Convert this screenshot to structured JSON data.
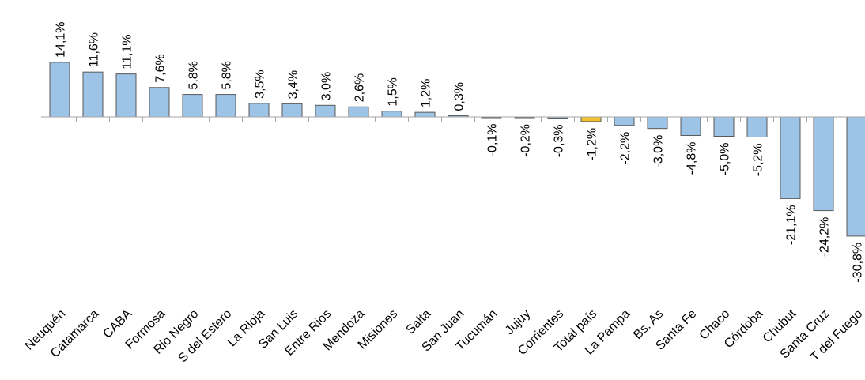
{
  "chart_data": {
    "type": "bar",
    "title": "",
    "xlabel": "",
    "ylabel": "",
    "ylim": [
      -33,
      16
    ],
    "grid": false,
    "legend": "none",
    "categories": [
      "Neuquén",
      "Catamarca",
      "CABA",
      "Formosa",
      "Rio Negro",
      "S del Estero",
      "La Rioja",
      "San Luis",
      "Entre Rios",
      "Mendoza",
      "Misiones",
      "Salta",
      "San Juan",
      "Tucumán",
      "Jujuy",
      "Corrientes",
      "Total país",
      "La Pampa",
      "Bs. As",
      "Santa Fe",
      "Chaco",
      "Córdoba",
      "Chubut",
      "Santa Cruz",
      "T del Fuego"
    ],
    "values": [
      14.1,
      11.6,
      11.1,
      7.6,
      5.8,
      5.8,
      3.5,
      3.4,
      3.0,
      2.6,
      1.5,
      1.2,
      0.3,
      -0.1,
      -0.2,
      -0.3,
      -1.2,
      -2.2,
      -3.0,
      -4.8,
      -5.0,
      -5.2,
      -21.1,
      -24.2,
      -30.8
    ],
    "data_labels": [
      "14,1%",
      "11,6%",
      "11,1%",
      "7,6%",
      "5,8%",
      "5,8%",
      "3,5%",
      "3,4%",
      "3,0%",
      "2,6%",
      "1,5%",
      "1,2%",
      "0,3%",
      "-0,1%",
      "-0,2%",
      "-0,3%",
      "-1,2%",
      "-2,2%",
      "-3,0%",
      "-4,8%",
      "-5,0%",
      "-5,2%",
      "-21,1%",
      "-24,2%",
      "-30,8%"
    ],
    "highlight_category": "Total país",
    "colors": {
      "bar_fill": "#9DC3E6",
      "highlight_fill": "#F2C12E",
      "bar_stroke": "#595959",
      "axis": "#A6A6A6",
      "text": "#000000"
    }
  }
}
